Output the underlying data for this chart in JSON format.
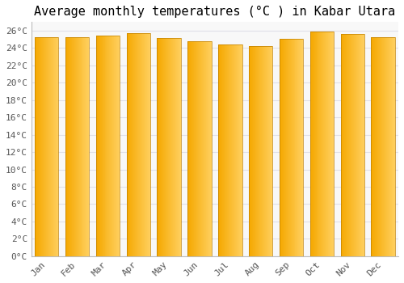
{
  "title": "Average monthly temperatures (°C ) in Kabar Utara",
  "months": [
    "Jan",
    "Feb",
    "Mar",
    "Apr",
    "May",
    "Jun",
    "Jul",
    "Aug",
    "Sep",
    "Oct",
    "Nov",
    "Dec"
  ],
  "values": [
    25.3,
    25.3,
    25.4,
    25.7,
    25.2,
    24.8,
    24.4,
    24.2,
    25.1,
    25.9,
    25.6,
    25.3
  ],
  "bar_color_left": "#F5A800",
  "bar_color_right": "#FFD060",
  "background_color": "#FFFFFF",
  "plot_bg_color": "#F8F8F8",
  "grid_color": "#E0E0E8",
  "ylim": [
    0,
    27
  ],
  "ytick_step": 2,
  "title_fontsize": 11,
  "tick_fontsize": 8,
  "font_family": "monospace",
  "bar_width": 0.78,
  "figsize": [
    5.0,
    3.5
  ],
  "dpi": 100
}
